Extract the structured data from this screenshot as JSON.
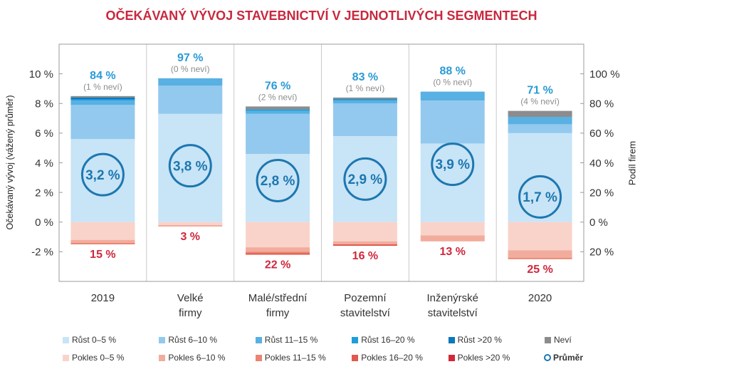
{
  "chart_data": {
    "type": "bar",
    "stacked": true,
    "title": "OČEKÁVANÝ VÝVOJ STAVEBNICTVÍ V JEDNOTLIVÝCH SEGMENTECH",
    "categories": [
      "2019",
      "Velké\nfirmy",
      "Malé/střední\nfirmy",
      "Pozemní\nstavitelství",
      "Inženýrské\nstavitelství",
      "2020"
    ],
    "ylabel": "Očekávaný vývoj (vážený průměr)",
    "ylabel_right": "Podíl firem",
    "ylim": [
      -4,
      12
    ],
    "yticks": [
      10,
      8,
      6,
      4,
      2,
      0,
      -2
    ],
    "ytick_labels": [
      "10 %",
      "8 %",
      "6 %",
      "4 %",
      "2 %",
      "0 %",
      "-2 %"
    ],
    "ylim_right": [
      -40,
      120
    ],
    "yticks_right": [
      100,
      80,
      60,
      40,
      20,
      0,
      -20
    ],
    "ytick_labels_right": [
      "100 %",
      "80 %",
      "60 %",
      "40 %",
      "20 %",
      "0 %",
      "20 %"
    ],
    "grid": false,
    "legend_position": "bottom",
    "series": [
      {
        "name": "Růst 0–5 %",
        "color": "#c8e4f7",
        "values": [
          56,
          73,
          46,
          58,
          53,
          60
        ]
      },
      {
        "name": "Růst 6–10 %",
        "color": "#93c9ee",
        "values": [
          23,
          19,
          27,
          22,
          29,
          6
        ]
      },
      {
        "name": "Růst 11–15 %",
        "color": "#58b0e3",
        "values": [
          3,
          5,
          2,
          2,
          6,
          5
        ]
      },
      {
        "name": "Růst 16–20 %",
        "color": "#1c9edb",
        "values": [
          1,
          0,
          1,
          1,
          0,
          0
        ]
      },
      {
        "name": "Růst >20 %",
        "color": "#0b78bb",
        "values": [
          1,
          0,
          0,
          0,
          0,
          0
        ]
      },
      {
        "name": "Neví",
        "color": "#8c8c8c",
        "values": [
          1,
          0,
          2,
          1,
          0,
          4
        ]
      },
      {
        "name": "Pokles 0–5 %",
        "color": "#f9d3ca",
        "values": [
          -12,
          -2,
          -17,
          -13,
          -9,
          -19
        ]
      },
      {
        "name": "Pokles 6–10 %",
        "color": "#f2ac9d",
        "values": [
          -2,
          -1,
          -3,
          -2,
          -4,
          -5
        ]
      },
      {
        "name": "Pokles 11–15 %",
        "color": "#e98571",
        "values": [
          -1,
          0,
          -1,
          0,
          0,
          -1
        ]
      },
      {
        "name": "Pokles 16–20 %",
        "color": "#e05a4f",
        "values": [
          0,
          0,
          -1,
          -1,
          0,
          0
        ]
      },
      {
        "name": "Pokles >20 %",
        "color": "#d42739",
        "values": [
          0,
          0,
          0,
          0,
          0,
          0
        ]
      }
    ],
    "growth_labels": [
      "84 %",
      "97 %",
      "76 %",
      "83 %",
      "88 %",
      "71 %"
    ],
    "dont_know_labels": [
      "(1 % neví)",
      "(0 % neví)",
      "(2 % neví)",
      "(1 % neví)",
      "(0 % neví)",
      "(4 % neví)"
    ],
    "decline_labels": [
      "15 %",
      "3 %",
      "22 %",
      "16 %",
      "13 %",
      "25 %"
    ],
    "average": {
      "name": "Průměr",
      "color": "#1d77af",
      "values": [
        3.2,
        3.8,
        2.8,
        2.9,
        3.9,
        1.7
      ],
      "labels": [
        "3,2 %",
        "3,8 %",
        "2,8 %",
        "2,9 %",
        "3,9 %",
        "1,7 %"
      ]
    }
  },
  "colors": {
    "title": "#c8283d",
    "growth_label": "#2a9ad6",
    "dont_know_label": "#8c8c8c",
    "decline_label": "#cf283c",
    "axis_text": "#333333",
    "frame": "#9b9b9b",
    "divider": "#c9c9c9"
  }
}
